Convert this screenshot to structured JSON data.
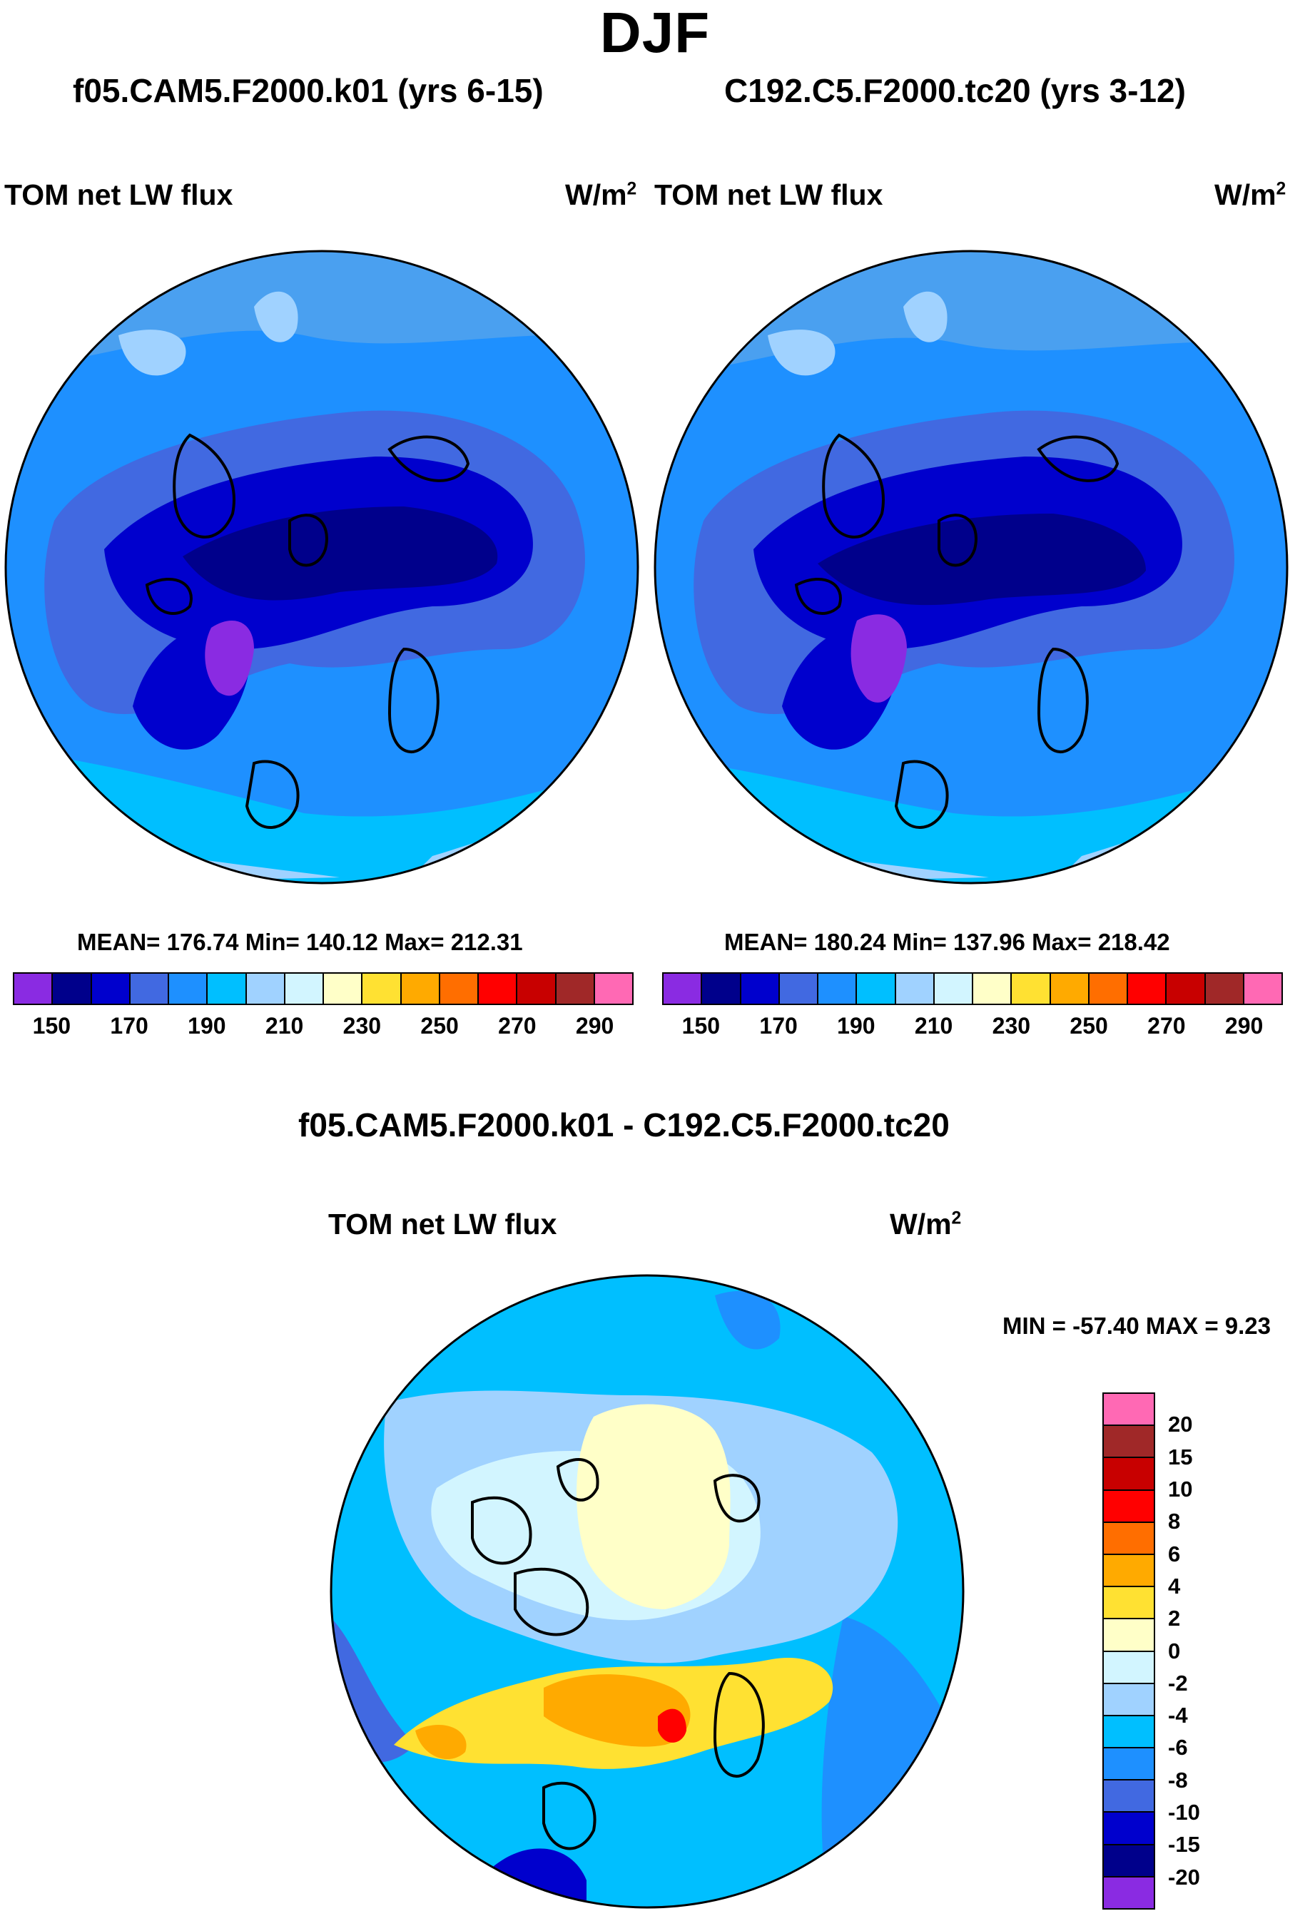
{
  "figure": {
    "season_title": "DJF",
    "units_label": "W/m",
    "units_exponent": "2",
    "variable_label": "TOM net LW flux"
  },
  "panels": [
    {
      "run_title": "f05.CAM5.F2000.k01 (yrs 6-15)",
      "stats": "MEAN= 176.74  Min= 140.12  Max= 212.31"
    },
    {
      "run_title": "C192.C5.F2000.tc20 (yrs 3-12)",
      "stats": "MEAN= 180.24  Min= 137.96  Max= 218.42"
    }
  ],
  "difference": {
    "title": "f05.CAM5.F2000.k01 - C192.C5.F2000.tc20",
    "stats": "MIN = -57.40 MAX =   9.23"
  },
  "colorbar_abs": {
    "colors": [
      "#8a2be2",
      "#00008b",
      "#0000cd",
      "#4169e1",
      "#1e90ff",
      "#00bfff",
      "#a0d2ff",
      "#d2f5ff",
      "#ffffc8",
      "#ffe132",
      "#ffaa00",
      "#ff6e00",
      "#ff0000",
      "#c80000",
      "#a02828",
      "#ff69b4"
    ],
    "tick_labels": [
      "150",
      "170",
      "190",
      "210",
      "230",
      "250",
      "270",
      "290"
    ]
  },
  "colorbar_diff": {
    "colors": [
      "#ff69b4",
      "#a02828",
      "#c80000",
      "#ff0000",
      "#ff6e00",
      "#ffaa00",
      "#ffe132",
      "#ffffc8",
      "#d2f5ff",
      "#a0d2ff",
      "#00bfff",
      "#1e90ff",
      "#4169e1",
      "#0000cd",
      "#00008b",
      "#8a2be2"
    ],
    "tick_labels": [
      "20",
      "15",
      "10",
      "8",
      "6",
      "4",
      "2",
      "0",
      "-2",
      "-4",
      "-6",
      "-8",
      "-10",
      "-15",
      "-20"
    ]
  },
  "chart_data": [
    {
      "type": "polar-stereographic contour map",
      "title": "TOM net LW flux — f05.CAM5.F2000.k01 (yrs 6-15)",
      "units": "W/m2",
      "mean": 176.74,
      "min": 140.12,
      "max": 212.31,
      "contour_levels": [
        150,
        160,
        170,
        180,
        190,
        200,
        210,
        220,
        230,
        240,
        250,
        260,
        270,
        280,
        290
      ]
    },
    {
      "type": "polar-stereographic contour map",
      "title": "TOM net LW flux — C192.C5.F2000.tc20 (yrs 3-12)",
      "units": "W/m2",
      "mean": 180.24,
      "min": 137.96,
      "max": 218.42,
      "contour_levels": [
        150,
        160,
        170,
        180,
        190,
        200,
        210,
        220,
        230,
        240,
        250,
        260,
        270,
        280,
        290
      ]
    },
    {
      "type": "polar-stereographic contour map (difference)",
      "title": "f05.CAM5.F2000.k01 - C192.C5.F2000.tc20",
      "units": "W/m2",
      "min": -57.4,
      "max": 9.23,
      "contour_levels": [
        -20,
        -15,
        -10,
        -8,
        -6,
        -4,
        -2,
        0,
        2,
        4,
        6,
        8,
        10,
        15,
        20
      ]
    }
  ]
}
